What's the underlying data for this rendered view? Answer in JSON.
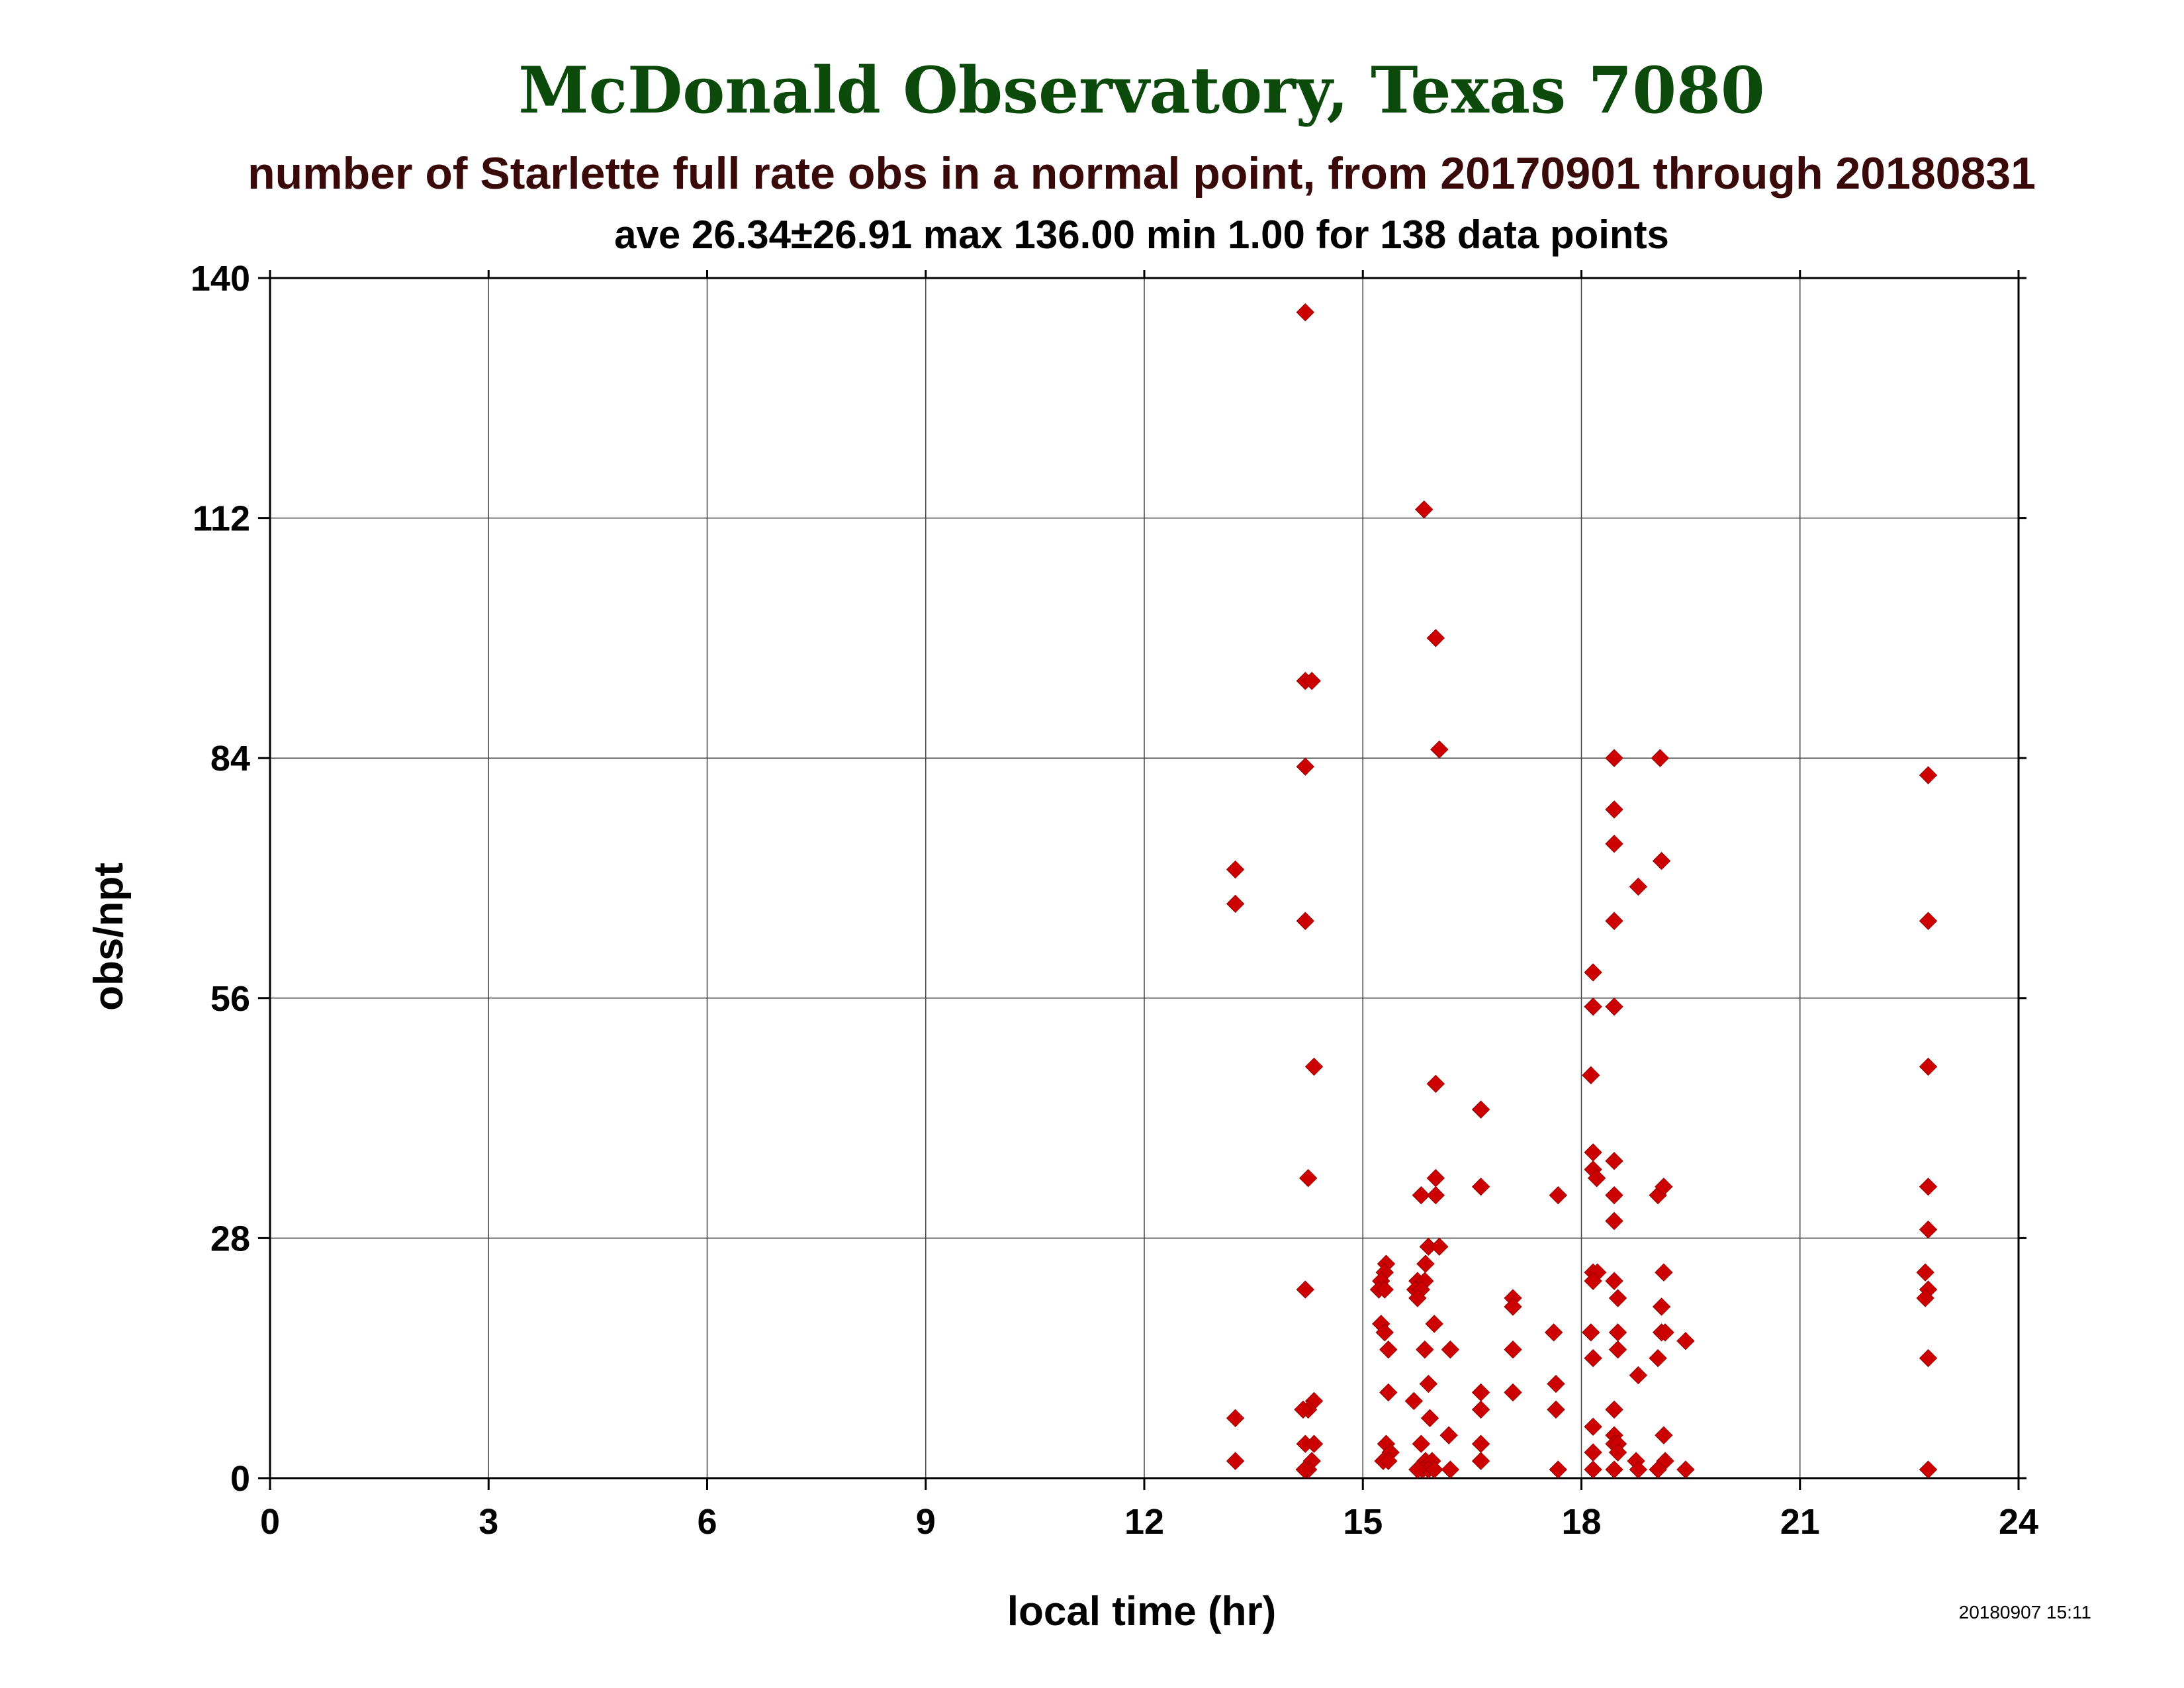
{
  "chart_data": {
    "type": "scatter",
    "title": "McDonald Observatory, Texas 7080",
    "subtitle": "number of Starlette full rate obs in a normal point, from 20170901 through 20180831",
    "stats": "ave 26.34±26.91 max 136.00 min 1.00 for 138 data points",
    "xlabel": "local time (hr)",
    "ylabel": "obs/npt",
    "timestamp": "20180907 15:11",
    "xlim": [
      0,
      24
    ],
    "ylim": [
      0,
      140
    ],
    "xticks": [
      0,
      3,
      6,
      9,
      12,
      15,
      18,
      21,
      24
    ],
    "yticks": [
      0,
      28,
      56,
      84,
      112,
      140
    ],
    "grid": true,
    "colors": {
      "title": "#0b4a0b",
      "subtitle": "#3a0a0a",
      "marker": "#cc0000"
    },
    "points": [
      [
        14.21,
        136
      ],
      [
        15.84,
        113
      ],
      [
        16.0,
        98
      ],
      [
        14.21,
        93
      ],
      [
        14.3,
        93
      ],
      [
        14.21,
        83
      ],
      [
        16.05,
        85
      ],
      [
        18.45,
        84
      ],
      [
        19.08,
        84
      ],
      [
        22.76,
        82
      ],
      [
        18.45,
        78
      ],
      [
        18.45,
        74
      ],
      [
        19.1,
        72
      ],
      [
        18.78,
        69
      ],
      [
        13.25,
        71
      ],
      [
        13.25,
        67
      ],
      [
        14.21,
        65
      ],
      [
        18.45,
        65
      ],
      [
        22.76,
        65
      ],
      [
        18.16,
        59
      ],
      [
        18.16,
        55
      ],
      [
        18.45,
        55
      ],
      [
        14.33,
        48
      ],
      [
        22.76,
        48
      ],
      [
        18.13,
        47
      ],
      [
        16.0,
        46
      ],
      [
        16.62,
        43
      ],
      [
        18.16,
        38
      ],
      [
        18.45,
        37
      ],
      [
        18.16,
        36
      ],
      [
        18.21,
        35
      ],
      [
        14.25,
        35
      ],
      [
        16.0,
        35
      ],
      [
        15.8,
        33
      ],
      [
        16.0,
        33
      ],
      [
        16.62,
        34
      ],
      [
        17.68,
        33
      ],
      [
        18.45,
        33
      ],
      [
        19.05,
        33
      ],
      [
        19.13,
        34
      ],
      [
        22.76,
        34
      ],
      [
        18.45,
        30
      ],
      [
        22.76,
        29
      ],
      [
        15.9,
        27
      ],
      [
        16.05,
        27
      ],
      [
        15.32,
        25
      ],
      [
        15.86,
        25
      ],
      [
        15.3,
        24
      ],
      [
        15.25,
        23
      ],
      [
        15.75,
        23
      ],
      [
        15.85,
        23
      ],
      [
        18.16,
        24
      ],
      [
        18.22,
        24
      ],
      [
        19.13,
        24
      ],
      [
        22.72,
        24
      ],
      [
        15.22,
        22
      ],
      [
        15.3,
        22
      ],
      [
        15.72,
        22
      ],
      [
        15.8,
        22
      ],
      [
        18.16,
        23
      ],
      [
        18.45,
        23
      ],
      [
        22.76,
        22
      ],
      [
        14.21,
        22
      ],
      [
        15.75,
        21
      ],
      [
        17.06,
        21
      ],
      [
        18.5,
        21
      ],
      [
        22.72,
        21
      ],
      [
        17.06,
        20
      ],
      [
        19.1,
        20
      ],
      [
        15.25,
        18
      ],
      [
        15.98,
        18
      ],
      [
        15.3,
        17
      ],
      [
        17.62,
        17
      ],
      [
        18.13,
        17
      ],
      [
        18.5,
        17
      ],
      [
        19.1,
        17
      ],
      [
        19.15,
        17
      ],
      [
        19.43,
        16
      ],
      [
        15.35,
        15
      ],
      [
        15.85,
        15
      ],
      [
        16.2,
        15
      ],
      [
        17.06,
        15
      ],
      [
        18.5,
        15
      ],
      [
        18.16,
        14
      ],
      [
        19.05,
        14
      ],
      [
        22.76,
        14
      ],
      [
        18.78,
        12
      ],
      [
        15.9,
        11
      ],
      [
        17.65,
        11
      ],
      [
        15.35,
        10
      ],
      [
        16.62,
        10
      ],
      [
        17.06,
        10
      ],
      [
        15.7,
        9
      ],
      [
        14.33,
        9
      ],
      [
        14.25,
        8
      ],
      [
        14.18,
        8
      ],
      [
        16.62,
        8
      ],
      [
        17.65,
        8
      ],
      [
        18.45,
        8
      ],
      [
        15.92,
        7
      ],
      [
        13.25,
        7
      ],
      [
        18.16,
        6
      ],
      [
        16.18,
        5
      ],
      [
        18.45,
        5
      ],
      [
        19.13,
        5
      ],
      [
        14.21,
        4
      ],
      [
        14.33,
        4
      ],
      [
        15.32,
        4
      ],
      [
        15.8,
        4
      ],
      [
        16.62,
        4
      ],
      [
        18.45,
        4
      ],
      [
        18.5,
        4
      ],
      [
        15.38,
        3
      ],
      [
        18.16,
        3
      ],
      [
        18.5,
        3
      ],
      [
        13.25,
        2
      ],
      [
        14.3,
        2
      ],
      [
        15.28,
        2
      ],
      [
        15.35,
        2
      ],
      [
        15.86,
        2
      ],
      [
        15.95,
        2
      ],
      [
        16.62,
        2
      ],
      [
        18.75,
        2
      ],
      [
        19.15,
        2
      ],
      [
        14.25,
        1
      ],
      [
        14.2,
        1
      ],
      [
        15.82,
        1
      ],
      [
        15.9,
        1
      ],
      [
        15.98,
        1
      ],
      [
        16.2,
        1
      ],
      [
        17.68,
        1
      ],
      [
        18.16,
        1
      ],
      [
        18.78,
        1
      ],
      [
        19.05,
        1
      ],
      [
        19.43,
        1
      ],
      [
        22.76,
        1
      ],
      [
        15.75,
        1
      ],
      [
        18.45,
        1
      ]
    ]
  }
}
